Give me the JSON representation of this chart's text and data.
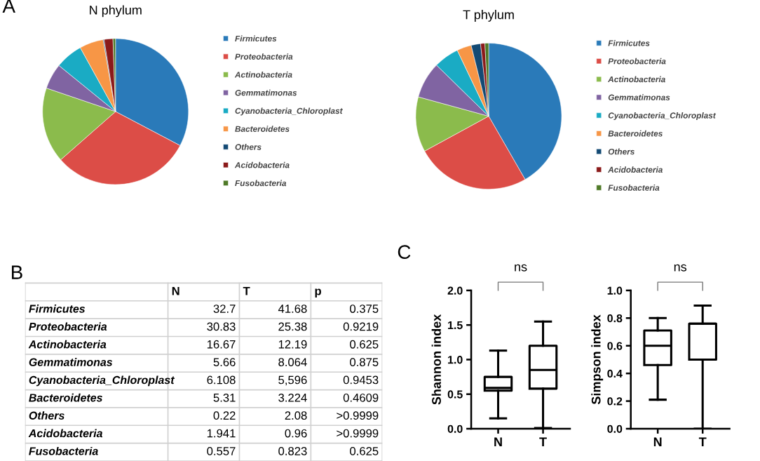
{
  "chart_data": [
    {
      "type": "pie",
      "title": "N phylum",
      "annotations": [
        "A"
      ],
      "legend": "right",
      "categories": [
        "Firmicutes",
        "Proteobacteria",
        "Actinobacteria",
        "Gemmatimonas",
        "Cyanobacteria_Chloroplast",
        "Bacteroidetes",
        "Others",
        "Acidobacteria",
        "Fusobacteria"
      ],
      "values": [
        32.7,
        30.83,
        16.67,
        5.66,
        6.108,
        5.31,
        0.22,
        1.941,
        0.557
      ],
      "colors": [
        "#2a7ab9",
        "#dc4d47",
        "#8bbb4c",
        "#8064a2",
        "#1aabc4",
        "#f79646",
        "#134a74",
        "#8b1a1a",
        "#4f7a28"
      ]
    },
    {
      "type": "pie",
      "title": "T phylum",
      "legend": "right",
      "categories": [
        "Firmicutes",
        "Proteobacteria",
        "Actinobacteria",
        "Gemmatimonas",
        "Cyanobacteria_Chloroplast",
        "Bacteroidetes",
        "Others",
        "Acidobacteria",
        "Fusobacteria"
      ],
      "values": [
        41.68,
        25.38,
        12.19,
        8.064,
        5.596,
        3.224,
        2.08,
        0.96,
        0.823
      ],
      "colors": [
        "#2a7ab9",
        "#dc4d47",
        "#8bbb4c",
        "#8064a2",
        "#1aabc4",
        "#f79646",
        "#134a74",
        "#8b1a1a",
        "#4f7a28"
      ]
    },
    {
      "type": "other",
      "annotations": [
        "B"
      ],
      "categories": [
        "N",
        "T",
        "p"
      ],
      "y_categories": [
        "Firmicutes",
        "Proteobacteria",
        "Actinobacteria",
        "Gemmatimonas",
        "Cyanobacteria_Chloroplast",
        "Bacteroidetes",
        "Others",
        "Acidobacteria",
        "Fusobacteria"
      ],
      "cell_labels": [
        [
          "32.7",
          "41.68",
          "0.375"
        ],
        [
          "30.83",
          "25.38",
          "0.9219"
        ],
        [
          "16.67",
          "12.19",
          "0.625"
        ],
        [
          "5.66",
          "8.064",
          "0.875"
        ],
        [
          "6.108",
          "5,596",
          "0.9453"
        ],
        [
          "5.31",
          "3.224",
          "0.4609"
        ],
        [
          "0.22",
          "2.08",
          ">0.9999"
        ],
        [
          "1.941",
          "0.96",
          ">0.9999"
        ],
        [
          "0.557",
          "0.823",
          "0.625"
        ]
      ]
    },
    {
      "type": "box",
      "ylabel": "Shannon index",
      "annotations": [
        "C",
        "ns"
      ],
      "categories": [
        "N",
        "T"
      ],
      "ylim": [
        0,
        2.0
      ],
      "yticks": [
        {
          "value": 0,
          "label": "0.0"
        },
        0.5,
        {
          "value": 1,
          "label": "1.0"
        },
        1.5,
        {
          "value": 2,
          "label": "2.0"
        }
      ],
      "boxes": [
        {
          "low": 0.15,
          "q1": 0.55,
          "median": 0.59,
          "q3": 0.75,
          "high": 1.13
        },
        {
          "low": 0.01,
          "q1": 0.58,
          "median": 0.85,
          "q3": 1.2,
          "high": 1.55
        }
      ]
    },
    {
      "type": "box",
      "ylabel": "Simpson index",
      "annotations": [
        "ns"
      ],
      "categories": [
        "N",
        "T"
      ],
      "ylim": [
        0,
        1.0
      ],
      "yticks": [
        {
          "value": 0,
          "label": "0.0"
        },
        0.2,
        0.4,
        0.6,
        0.8,
        {
          "value": 1,
          "label": "1.0"
        }
      ],
      "boxes": [
        {
          "low": 0.21,
          "q1": 0.46,
          "median": 0.6,
          "q3": 0.71,
          "high": 0.8
        },
        {
          "low": 0.0,
          "q1": 0.5,
          "median": 0.76,
          "q3": 0.76,
          "high": 0.89
        }
      ]
    }
  ]
}
